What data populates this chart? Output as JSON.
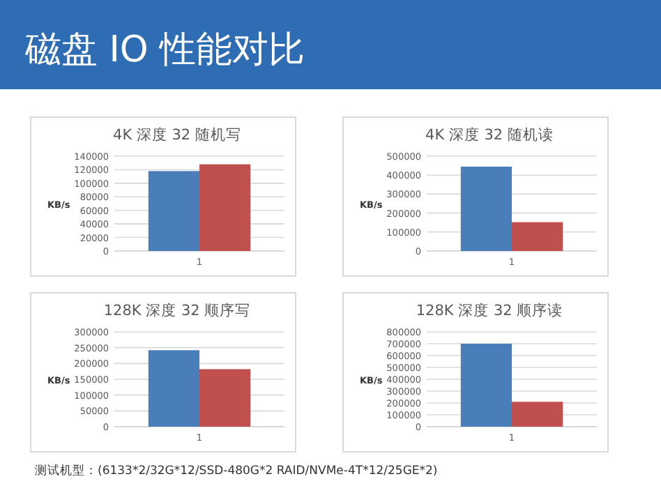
{
  "chart_data": [
    {
      "type": "other",
      "title": "磁盘 IO 性能对比",
      "annotations": [
        "测试机型：(6133*2/32G*12/SSD-480G*2 RAID/NVMe-4T*12/25GE*2)"
      ]
    },
    {
      "type": "bar",
      "title": "4K 深度 32 随机写",
      "ylabel": "KB/s",
      "categories": [
        "1"
      ],
      "series": [
        {
          "color": "#4a7ebb",
          "values": [
            118000
          ]
        },
        {
          "color": "#c0504d",
          "values": [
            128000
          ]
        }
      ],
      "ylim": [
        0,
        140000
      ],
      "yticks": [
        0,
        20000,
        40000,
        60000,
        80000,
        100000,
        120000,
        140000
      ],
      "grid": "y"
    },
    {
      "type": "bar",
      "title": "4K 深度 32 随机读",
      "ylabel": "KB/s",
      "categories": [
        "1"
      ],
      "series": [
        {
          "color": "#4a7ebb",
          "values": [
            445000
          ]
        },
        {
          "color": "#c0504d",
          "values": [
            152000
          ]
        }
      ],
      "ylim": [
        0,
        500000
      ],
      "yticks": [
        0,
        100000,
        200000,
        300000,
        400000,
        500000
      ],
      "grid": "y"
    },
    {
      "type": "bar",
      "title": "128K 深度 32 顺序写",
      "ylabel": "KB/s",
      "categories": [
        "1"
      ],
      "series": [
        {
          "color": "#4a7ebb",
          "values": [
            242000
          ]
        },
        {
          "color": "#c0504d",
          "values": [
            182000
          ]
        }
      ],
      "ylim": [
        0,
        300000
      ],
      "yticks": [
        0,
        50000,
        100000,
        150000,
        200000,
        250000,
        300000
      ],
      "grid": "y"
    },
    {
      "type": "bar",
      "title": "128K 深度 32 顺序读",
      "ylabel": "KB/s",
      "categories": [
        "1"
      ],
      "series": [
        {
          "color": "#4a7ebb",
          "values": [
            700000
          ]
        },
        {
          "color": "#c0504d",
          "values": [
            210000
          ]
        }
      ],
      "ylim": [
        0,
        800000
      ],
      "yticks": [
        0,
        100000,
        200000,
        300000,
        400000,
        500000,
        600000,
        700000,
        800000
      ],
      "grid": "y"
    }
  ]
}
